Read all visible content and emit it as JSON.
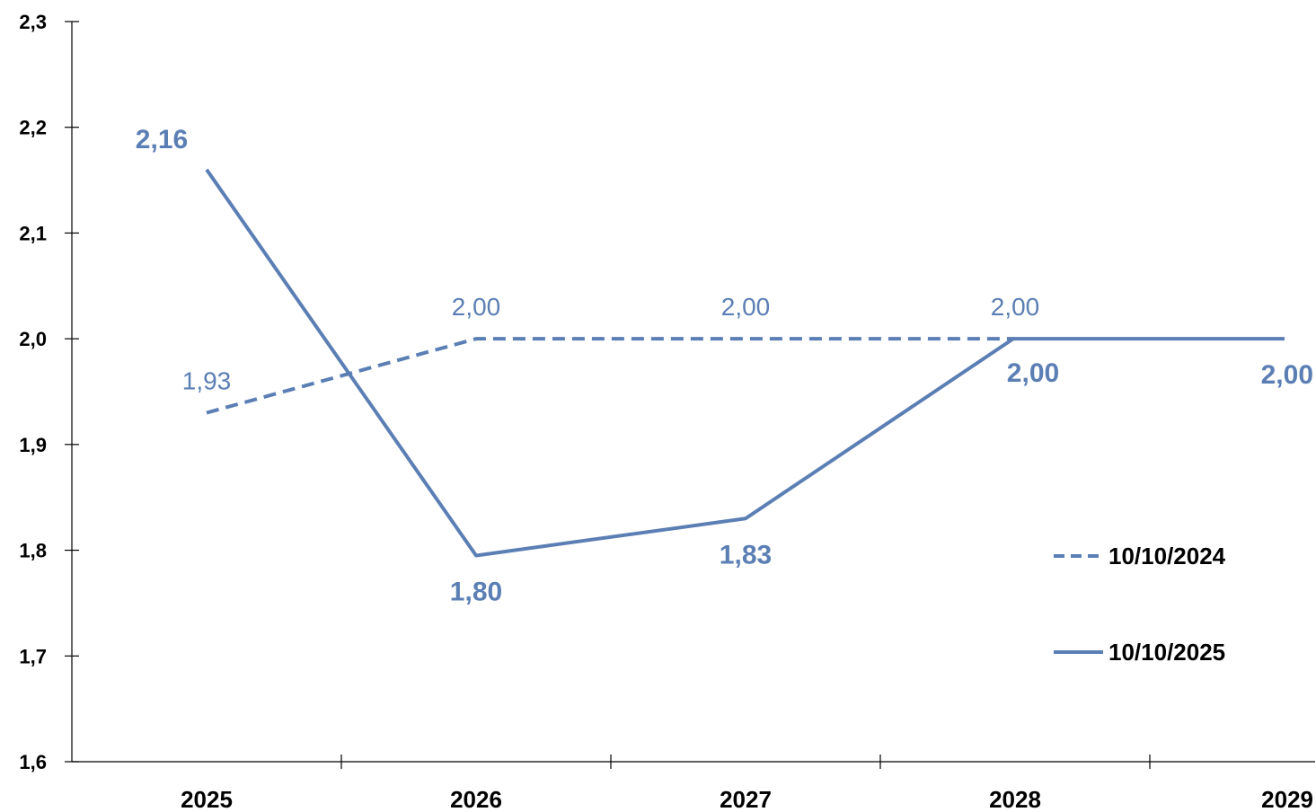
{
  "colors": {
    "series": "#5b7fb4",
    "axis": "#000000"
  },
  "chart_data": {
    "type": "line",
    "categories": [
      "2025",
      "2026",
      "2027",
      "2028",
      "2029"
    ],
    "ylim": [
      1.6,
      2.3
    ],
    "yticks": [
      1.6,
      1.7,
      1.8,
      1.9,
      2.0,
      2.1,
      2.2,
      2.3
    ],
    "ytick_labels": [
      "1,6",
      "1,7",
      "1,8",
      "1,9",
      "2,0",
      "2,1",
      "2,2",
      "2,3"
    ],
    "grid": false,
    "legend_position": "right",
    "series": [
      {
        "name": "10/10/2024",
        "style": "dashed",
        "values": [
          1.93,
          2.0,
          2.0,
          2.0,
          null
        ],
        "labels": [
          "1,93",
          "2,00",
          "2,00",
          "2,00",
          null
        ]
      },
      {
        "name": "10/10/2025",
        "style": "solid",
        "values": [
          2.16,
          1.795,
          1.83,
          2.0,
          2.0
        ],
        "labels": [
          "2,16",
          "1,80",
          "1,83",
          "2,00",
          "2,00"
        ]
      }
    ]
  }
}
